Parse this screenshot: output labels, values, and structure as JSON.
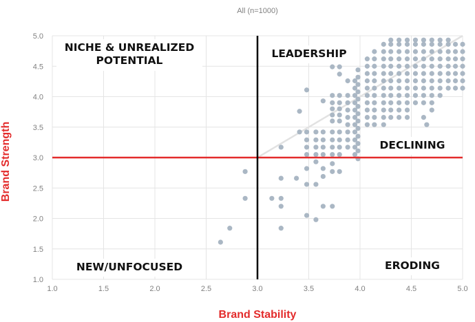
{
  "chart_data": {
    "type": "scatter",
    "subtitle": "All (n=1000)",
    "xlabel": "Brand Stability",
    "ylabel": "Brand Strength",
    "xlim": [
      1.0,
      5.0
    ],
    "ylim": [
      1.0,
      5.0
    ],
    "x_ticks": [
      "1.0",
      "1.5",
      "2.0",
      "2.5",
      "3.0",
      "3.5",
      "4.0",
      "4.5",
      "5.0"
    ],
    "y_ticks": [
      "1.0",
      "1.5",
      "2.0",
      "2.5",
      "3.0",
      "3.5",
      "4.0",
      "4.5",
      "5.0"
    ],
    "grid": true,
    "colors": {
      "points": "#aab7c4",
      "threshold": "#e32b2b",
      "midline": "#000000",
      "trend": "#e2e2e2",
      "axis_title": "#e32b2b"
    },
    "reference_lines": {
      "vertical_x": 3.0,
      "horizontal_y": 3.0
    },
    "trend_line": {
      "start": [
        3.0,
        3.0
      ],
      "end": [
        5.0,
        5.0
      ]
    },
    "quadrant_labels": [
      {
        "lines": [
          "NICHE & UNREALIZED",
          "POTENTIAL"
        ],
        "position": "top-left"
      },
      {
        "lines": [
          "LEADERSHIP"
        ],
        "position": "top-right"
      },
      {
        "lines": [
          "DECLINING"
        ],
        "position": "middle-right"
      },
      {
        "lines": [
          "NEW/UNFOCUSED"
        ],
        "position": "bottom-left"
      },
      {
        "lines": [
          "ERODING"
        ],
        "position": "bottom-right"
      }
    ],
    "points": [
      [
        2.64,
        1.61
      ],
      [
        2.73,
        1.84
      ],
      [
        2.88,
        2.33
      ],
      [
        2.88,
        2.77
      ],
      [
        3.14,
        2.33
      ],
      [
        3.23,
        2.33
      ],
      [
        3.23,
        2.2
      ],
      [
        3.23,
        1.84
      ],
      [
        3.23,
        2.66
      ],
      [
        3.23,
        3.17
      ],
      [
        3.38,
        2.66
      ],
      [
        3.41,
        3.76
      ],
      [
        3.41,
        3.42
      ],
      [
        3.48,
        4.11
      ],
      [
        3.48,
        2.05
      ],
      [
        3.48,
        2.56
      ],
      [
        3.48,
        2.82
      ],
      [
        3.48,
        3.05
      ],
      [
        3.48,
        3.17
      ],
      [
        3.48,
        3.29
      ],
      [
        3.48,
        3.42
      ],
      [
        3.57,
        1.98
      ],
      [
        3.57,
        2.56
      ],
      [
        3.57,
        2.93
      ],
      [
        3.57,
        3.05
      ],
      [
        3.57,
        3.17
      ],
      [
        3.57,
        3.29
      ],
      [
        3.57,
        3.42
      ],
      [
        3.64,
        2.2
      ],
      [
        3.64,
        2.69
      ],
      [
        3.64,
        2.82
      ],
      [
        3.64,
        3.05
      ],
      [
        3.64,
        3.17
      ],
      [
        3.64,
        3.29
      ],
      [
        3.64,
        3.42
      ],
      [
        3.64,
        3.93
      ],
      [
        3.73,
        2.2
      ],
      [
        3.73,
        2.77
      ],
      [
        3.73,
        2.9
      ],
      [
        3.73,
        3.05
      ],
      [
        3.73,
        3.17
      ],
      [
        3.73,
        3.29
      ],
      [
        3.73,
        3.42
      ],
      [
        3.73,
        3.6
      ],
      [
        3.73,
        3.7
      ],
      [
        3.73,
        3.8
      ],
      [
        3.73,
        3.9
      ],
      [
        3.73,
        4.02
      ],
      [
        3.73,
        4.49
      ],
      [
        3.8,
        2.77
      ],
      [
        3.8,
        3.05
      ],
      [
        3.8,
        3.17
      ],
      [
        3.8,
        3.29
      ],
      [
        3.8,
        3.42
      ],
      [
        3.8,
        3.6
      ],
      [
        3.8,
        3.7
      ],
      [
        3.8,
        3.8
      ],
      [
        3.8,
        3.9
      ],
      [
        3.8,
        4.02
      ],
      [
        3.8,
        4.49
      ],
      [
        3.8,
        4.37
      ],
      [
        3.88,
        3.17
      ],
      [
        3.88,
        3.29
      ],
      [
        3.88,
        3.42
      ],
      [
        3.88,
        3.54
      ],
      [
        3.88,
        3.66
      ],
      [
        3.88,
        3.78
      ],
      [
        3.88,
        3.9
      ],
      [
        3.88,
        4.02
      ],
      [
        3.88,
        4.26
      ],
      [
        3.95,
        3.05
      ],
      [
        3.95,
        3.17
      ],
      [
        3.95,
        3.29
      ],
      [
        3.95,
        3.42
      ],
      [
        3.95,
        3.54
      ],
      [
        3.95,
        3.66
      ],
      [
        3.95,
        3.78
      ],
      [
        3.95,
        3.9
      ],
      [
        3.95,
        4.02
      ],
      [
        3.95,
        4.14
      ],
      [
        3.95,
        4.26
      ],
      [
        3.98,
        2.98
      ],
      [
        3.98,
        3.11
      ],
      [
        3.98,
        3.23
      ],
      [
        3.98,
        3.35
      ],
      [
        3.98,
        3.48
      ],
      [
        3.98,
        3.6
      ],
      [
        3.98,
        3.72
      ],
      [
        3.98,
        3.84
      ],
      [
        3.98,
        3.96
      ],
      [
        3.98,
        4.08
      ],
      [
        3.98,
        4.2
      ],
      [
        3.98,
        4.32
      ],
      [
        3.98,
        4.44
      ],
      [
        4.07,
        3.54
      ],
      [
        4.07,
        3.66
      ],
      [
        4.07,
        3.78
      ],
      [
        4.07,
        3.9
      ],
      [
        4.07,
        4.02
      ],
      [
        4.07,
        4.14
      ],
      [
        4.07,
        4.26
      ],
      [
        4.07,
        4.38
      ],
      [
        4.07,
        4.5
      ],
      [
        4.07,
        4.62
      ],
      [
        4.14,
        3.54
      ],
      [
        4.14,
        3.66
      ],
      [
        4.14,
        3.78
      ],
      [
        4.14,
        3.9
      ],
      [
        4.14,
        4.02
      ],
      [
        4.14,
        4.14
      ],
      [
        4.14,
        4.26
      ],
      [
        4.14,
        4.38
      ],
      [
        4.14,
        4.5
      ],
      [
        4.14,
        4.62
      ],
      [
        4.14,
        4.74
      ],
      [
        4.23,
        3.54
      ],
      [
        4.23,
        3.66
      ],
      [
        4.23,
        3.78
      ],
      [
        4.23,
        3.9
      ],
      [
        4.23,
        4.02
      ],
      [
        4.23,
        4.14
      ],
      [
        4.23,
        4.26
      ],
      [
        4.23,
        4.38
      ],
      [
        4.23,
        4.5
      ],
      [
        4.23,
        4.62
      ],
      [
        4.23,
        4.74
      ],
      [
        4.23,
        4.86
      ],
      [
        4.3,
        3.66
      ],
      [
        4.3,
        3.78
      ],
      [
        4.3,
        3.9
      ],
      [
        4.3,
        4.02
      ],
      [
        4.3,
        4.14
      ],
      [
        4.3,
        4.26
      ],
      [
        4.3,
        4.38
      ],
      [
        4.3,
        4.5
      ],
      [
        4.3,
        4.62
      ],
      [
        4.3,
        4.74
      ],
      [
        4.3,
        4.86
      ],
      [
        4.3,
        4.93
      ],
      [
        4.38,
        3.66
      ],
      [
        4.38,
        3.78
      ],
      [
        4.38,
        3.9
      ],
      [
        4.38,
        4.02
      ],
      [
        4.38,
        4.14
      ],
      [
        4.38,
        4.26
      ],
      [
        4.38,
        4.38
      ],
      [
        4.38,
        4.5
      ],
      [
        4.38,
        4.62
      ],
      [
        4.38,
        4.74
      ],
      [
        4.38,
        4.86
      ],
      [
        4.38,
        4.93
      ],
      [
        4.46,
        3.66
      ],
      [
        4.46,
        3.78
      ],
      [
        4.46,
        3.9
      ],
      [
        4.46,
        4.02
      ],
      [
        4.46,
        4.14
      ],
      [
        4.46,
        4.26
      ],
      [
        4.46,
        4.38
      ],
      [
        4.46,
        4.5
      ],
      [
        4.46,
        4.62
      ],
      [
        4.46,
        4.74
      ],
      [
        4.46,
        4.86
      ],
      [
        4.46,
        4.93
      ],
      [
        4.54,
        3.9
      ],
      [
        4.54,
        4.02
      ],
      [
        4.54,
        4.14
      ],
      [
        4.54,
        4.26
      ],
      [
        4.54,
        4.38
      ],
      [
        4.54,
        4.5
      ],
      [
        4.54,
        4.62
      ],
      [
        4.54,
        4.74
      ],
      [
        4.54,
        4.86
      ],
      [
        4.54,
        4.93
      ],
      [
        4.62,
        3.66
      ],
      [
        4.62,
        3.9
      ],
      [
        4.62,
        4.02
      ],
      [
        4.62,
        4.14
      ],
      [
        4.62,
        4.26
      ],
      [
        4.62,
        4.38
      ],
      [
        4.62,
        4.5
      ],
      [
        4.62,
        4.62
      ],
      [
        4.62,
        4.74
      ],
      [
        4.62,
        4.86
      ],
      [
        4.62,
        4.93
      ],
      [
        4.65,
        3.54
      ],
      [
        4.7,
        3.78
      ],
      [
        4.7,
        3.9
      ],
      [
        4.7,
        4.02
      ],
      [
        4.7,
        4.14
      ],
      [
        4.7,
        4.26
      ],
      [
        4.7,
        4.38
      ],
      [
        4.7,
        4.5
      ],
      [
        4.7,
        4.62
      ],
      [
        4.7,
        4.74
      ],
      [
        4.7,
        4.86
      ],
      [
        4.7,
        4.93
      ],
      [
        4.78,
        4.02
      ],
      [
        4.78,
        4.14
      ],
      [
        4.78,
        4.26
      ],
      [
        4.78,
        4.38
      ],
      [
        4.78,
        4.5
      ],
      [
        4.78,
        4.62
      ],
      [
        4.78,
        4.74
      ],
      [
        4.78,
        4.86
      ],
      [
        4.78,
        4.93
      ],
      [
        4.86,
        4.14
      ],
      [
        4.86,
        4.26
      ],
      [
        4.86,
        4.38
      ],
      [
        4.86,
        4.5
      ],
      [
        4.86,
        4.62
      ],
      [
        4.86,
        4.74
      ],
      [
        4.86,
        4.86
      ],
      [
        4.86,
        4.93
      ],
      [
        4.93,
        4.14
      ],
      [
        4.93,
        4.26
      ],
      [
        4.93,
        4.38
      ],
      [
        4.93,
        4.5
      ],
      [
        4.93,
        4.62
      ],
      [
        4.93,
        4.74
      ],
      [
        4.93,
        4.86
      ],
      [
        5.0,
        4.14
      ],
      [
        5.0,
        4.26
      ],
      [
        5.0,
        4.38
      ],
      [
        5.0,
        4.5
      ],
      [
        5.0,
        4.62
      ],
      [
        5.0,
        4.74
      ],
      [
        5.0,
        4.86
      ]
    ]
  }
}
